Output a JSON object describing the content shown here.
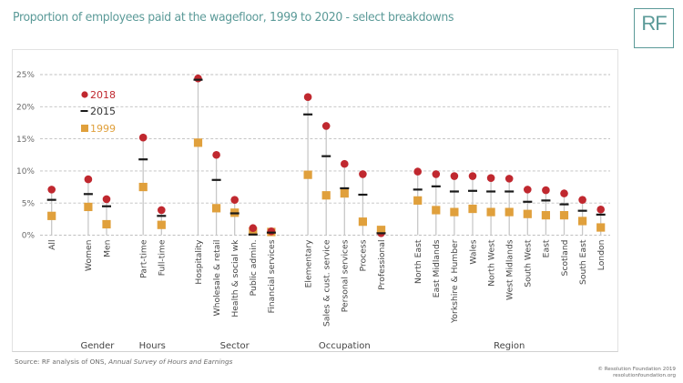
{
  "header": {
    "title": "Proportion of employees paid at the wagefloor, 1999 to 2020 - select breakdowns",
    "logo_text": "RF"
  },
  "footer": {
    "source_prefix": "Source: RF analysis of ONS, ",
    "source_italic": "Annual Survey of Hours and Earnings",
    "copyright_line1": "© Resolution Foundation 2019",
    "copyright_line2": "resolutionfoundation.org"
  },
  "colors": {
    "s2018": "#c0282f",
    "s2015": "#1a1a1a",
    "s1999": "#e0a03c",
    "title": "#5b9a98",
    "grid": "#bfbfbf",
    "stem": "#c8c8c8"
  },
  "chart_data": {
    "type": "scatter",
    "title": "Proportion of employees paid at the wagefloor, 1999 to 2020 - select breakdowns",
    "xlabel": "",
    "ylabel": "",
    "ylim": [
      0,
      25
    ],
    "yticks": [
      0,
      5,
      10,
      15,
      20,
      25
    ],
    "ytick_labels": [
      "0%",
      "5%",
      "10%",
      "15%",
      "20%",
      "25%"
    ],
    "grid": true,
    "legend_position": "top-left",
    "legend": [
      {
        "name": "2018",
        "marker": "circle"
      },
      {
        "name": "2015",
        "marker": "dash"
      },
      {
        "name": "1999",
        "marker": "square"
      }
    ],
    "groups": [
      {
        "name": "",
        "categories": [
          "All"
        ]
      },
      {
        "name": "Gender",
        "categories": [
          "Women",
          "Men"
        ]
      },
      {
        "name": "Hours",
        "categories": [
          "Part-time",
          "Full-time"
        ]
      },
      {
        "name": "Sector",
        "categories": [
          "Hospitality",
          "Wholesale & retail",
          "Health & social wk",
          "Public admin.",
          "Financial services"
        ]
      },
      {
        "name": "Occupation",
        "categories": [
          "Elementary",
          "Sales & cust. service",
          "Personal services",
          "Process",
          "Professional"
        ]
      },
      {
        "name": "Region",
        "categories": [
          "North East",
          "East Midlands",
          "Yorkshire & Humber",
          "Wales",
          "North West",
          "West Midlands",
          "South West",
          "East",
          "Scotland",
          "South East",
          "London"
        ]
      }
    ],
    "categories": [
      "All",
      "Women",
      "Men",
      "Part-time",
      "Full-time",
      "Hospitality",
      "Wholesale & retail",
      "Health & social wk",
      "Public admin.",
      "Financial services",
      "Elementary",
      "Sales & cust. service",
      "Personal services",
      "Process",
      "Professional",
      "North East",
      "East Midlands",
      "Yorkshire & Humber",
      "Wales",
      "North West",
      "West Midlands",
      "South West",
      "East",
      "Scotland",
      "South East",
      "London"
    ],
    "series": [
      {
        "name": "2018",
        "values": [
          7.1,
          8.7,
          5.6,
          15.2,
          3.9,
          24.4,
          12.5,
          5.5,
          1.1,
          0.6,
          21.5,
          17.0,
          11.1,
          9.5,
          0.3,
          9.9,
          9.5,
          9.2,
          9.2,
          8.9,
          8.8,
          7.1,
          7.0,
          6.5,
          5.5,
          4.0
        ]
      },
      {
        "name": "2015",
        "values": [
          5.5,
          6.4,
          4.5,
          11.8,
          3.0,
          24.2,
          8.6,
          3.4,
          0.1,
          0.4,
          18.8,
          12.3,
          7.3,
          6.3,
          0.3,
          7.1,
          7.6,
          6.8,
          6.9,
          6.8,
          6.8,
          5.2,
          5.4,
          4.8,
          3.8,
          3.2
        ]
      },
      {
        "name": "1999",
        "values": [
          3.0,
          4.4,
          1.7,
          7.5,
          1.6,
          14.4,
          4.2,
          3.5,
          0.6,
          0.5,
          9.4,
          6.2,
          6.5,
          2.1,
          0.8,
          5.4,
          3.9,
          3.6,
          4.1,
          3.6,
          3.6,
          3.3,
          3.1,
          3.1,
          2.2,
          1.2
        ]
      }
    ]
  }
}
